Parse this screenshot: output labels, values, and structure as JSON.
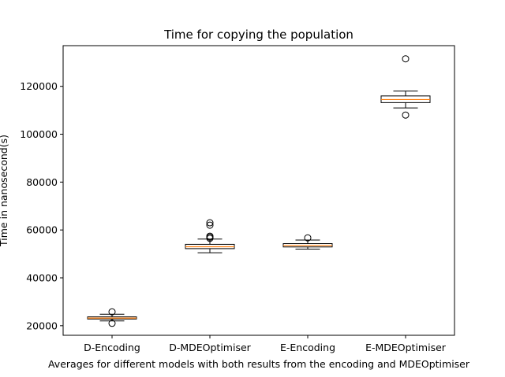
{
  "chart_data": {
    "type": "box",
    "title": "Time for copying the population",
    "xlabel": "Averages for different models with both results from the encoding and MDEOptimiser",
    "ylabel": "Time in nanosecond(s)",
    "ylim": [
      16000,
      137000
    ],
    "yticks": [
      20000,
      40000,
      60000,
      80000,
      100000,
      120000
    ],
    "yticklabels": [
      "20000",
      "40000",
      "60000",
      "80000",
      "100000",
      "120000"
    ],
    "categories": [
      "D-Encoding",
      "D-MDEOptimiser",
      "E-Encoding",
      "E-MDEOptimiser"
    ],
    "grid": false,
    "series": [
      {
        "category": "D-Encoding",
        "whisker_low": 22000,
        "q1": 22800,
        "median": 23200,
        "q3": 23700,
        "whisker_high": 24800,
        "outliers": [
          21000,
          25800
        ]
      },
      {
        "category": "D-MDEOptimiser",
        "whisker_low": 50500,
        "q1": 52200,
        "median": 53000,
        "q3": 54000,
        "whisker_high": 56200,
        "outliers": [
          56500,
          57000,
          57400,
          62000,
          63000
        ]
      },
      {
        "category": "E-Encoding",
        "whisker_low": 52000,
        "q1": 52900,
        "median": 53500,
        "q3": 54300,
        "whisker_high": 55800,
        "outliers": [
          56700
        ]
      },
      {
        "category": "E-MDEOptimiser",
        "whisker_low": 111000,
        "q1": 113200,
        "median": 114500,
        "q3": 116000,
        "whisker_high": 118000,
        "outliers": [
          108000,
          131500
        ]
      }
    ],
    "colors": {
      "box": "#000000",
      "median": "#ff7f0e",
      "outlier_face": "none"
    }
  }
}
